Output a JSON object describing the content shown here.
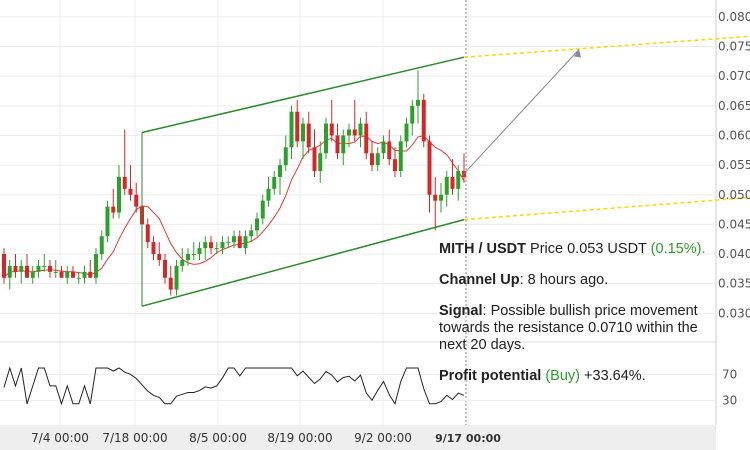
{
  "chart_data": {
    "type": "candlestick",
    "pair": "MITH / USDT",
    "y_ticks": [
      "0.080",
      "0.075",
      "0.070",
      "0.065",
      "0.060",
      "0.055",
      "0.050",
      "0.045",
      "0.040",
      "0.035",
      "0.030"
    ],
    "ylim": [
      0.0255,
      0.0815
    ],
    "x_ticks": [
      "7/4 00:00",
      "7/18 00:00",
      "8/5 00:00",
      "8/19 00:00",
      "9/2 00:00",
      "9/17 00:00"
    ],
    "oscillator_ticks": [
      "70",
      "30"
    ],
    "oscillator_ylim": [
      0,
      100
    ],
    "candles": [
      [
        0.04,
        0.041,
        0.035,
        0.036
      ],
      [
        0.036,
        0.039,
        0.034,
        0.038
      ],
      [
        0.038,
        0.04,
        0.036,
        0.037
      ],
      [
        0.037,
        0.039,
        0.035,
        0.038
      ],
      [
        0.038,
        0.04,
        0.036,
        0.036
      ],
      [
        0.036,
        0.038,
        0.035,
        0.037
      ],
      [
        0.037,
        0.039,
        0.036,
        0.038
      ],
      [
        0.038,
        0.04,
        0.037,
        0.038
      ],
      [
        0.038,
        0.039,
        0.036,
        0.037
      ],
      [
        0.037,
        0.039,
        0.036,
        0.037
      ],
      [
        0.037,
        0.038,
        0.036,
        0.036
      ],
      [
        0.036,
        0.038,
        0.035,
        0.037
      ],
      [
        0.037,
        0.038,
        0.036,
        0.036
      ],
      [
        0.036,
        0.037,
        0.035,
        0.036
      ],
      [
        0.036,
        0.038,
        0.035,
        0.037
      ],
      [
        0.037,
        0.039,
        0.036,
        0.036
      ],
      [
        0.036,
        0.041,
        0.035,
        0.04
      ],
      [
        0.04,
        0.044,
        0.039,
        0.043
      ],
      [
        0.043,
        0.049,
        0.042,
        0.048
      ],
      [
        0.048,
        0.051,
        0.046,
        0.047
      ],
      [
        0.047,
        0.055,
        0.046,
        0.053
      ],
      [
        0.053,
        0.061,
        0.05,
        0.051
      ],
      [
        0.051,
        0.055,
        0.049,
        0.05
      ],
      [
        0.05,
        0.052,
        0.047,
        0.048
      ],
      [
        0.048,
        0.05,
        0.044,
        0.045
      ],
      [
        0.045,
        0.046,
        0.041,
        0.042
      ],
      [
        0.042,
        0.043,
        0.039,
        0.04
      ],
      [
        0.04,
        0.042,
        0.038,
        0.039
      ],
      [
        0.039,
        0.04,
        0.035,
        0.036
      ],
      [
        0.036,
        0.038,
        0.033,
        0.034
      ],
      [
        0.034,
        0.039,
        0.033,
        0.038
      ],
      [
        0.038,
        0.041,
        0.037,
        0.039
      ],
      [
        0.039,
        0.041,
        0.038,
        0.04
      ],
      [
        0.04,
        0.042,
        0.039,
        0.04
      ],
      [
        0.04,
        0.042,
        0.039,
        0.041
      ],
      [
        0.041,
        0.043,
        0.039,
        0.042
      ],
      [
        0.042,
        0.043,
        0.04,
        0.041
      ],
      [
        0.041,
        0.042,
        0.04,
        0.041
      ],
      [
        0.041,
        0.043,
        0.04,
        0.042
      ],
      [
        0.042,
        0.043,
        0.041,
        0.042
      ],
      [
        0.042,
        0.044,
        0.041,
        0.043
      ],
      [
        0.043,
        0.044,
        0.041,
        0.041
      ],
      [
        0.041,
        0.044,
        0.04,
        0.043
      ],
      [
        0.043,
        0.045,
        0.042,
        0.044
      ],
      [
        0.044,
        0.047,
        0.043,
        0.046
      ],
      [
        0.046,
        0.05,
        0.045,
        0.049
      ],
      [
        0.049,
        0.053,
        0.048,
        0.051
      ],
      [
        0.051,
        0.054,
        0.05,
        0.053
      ],
      [
        0.053,
        0.056,
        0.05,
        0.055
      ],
      [
        0.055,
        0.06,
        0.054,
        0.058
      ],
      [
        0.058,
        0.065,
        0.056,
        0.064
      ],
      [
        0.064,
        0.066,
        0.058,
        0.059
      ],
      [
        0.059,
        0.063,
        0.056,
        0.062
      ],
      [
        0.062,
        0.064,
        0.057,
        0.058
      ],
      [
        0.058,
        0.061,
        0.053,
        0.054
      ],
      [
        0.054,
        0.059,
        0.052,
        0.057
      ],
      [
        0.057,
        0.063,
        0.056,
        0.062
      ],
      [
        0.062,
        0.066,
        0.059,
        0.06
      ],
      [
        0.06,
        0.062,
        0.056,
        0.057
      ],
      [
        0.057,
        0.061,
        0.055,
        0.06
      ],
      [
        0.06,
        0.062,
        0.058,
        0.061
      ],
      [
        0.061,
        0.066,
        0.059,
        0.06
      ],
      [
        0.06,
        0.063,
        0.058,
        0.062
      ],
      [
        0.062,
        0.064,
        0.056,
        0.057
      ],
      [
        0.057,
        0.059,
        0.054,
        0.055
      ],
      [
        0.055,
        0.058,
        0.054,
        0.057
      ],
      [
        0.057,
        0.06,
        0.056,
        0.059
      ],
      [
        0.059,
        0.061,
        0.055,
        0.056
      ],
      [
        0.056,
        0.058,
        0.053,
        0.054
      ],
      [
        0.054,
        0.06,
        0.053,
        0.059
      ],
      [
        0.059,
        0.063,
        0.058,
        0.062
      ],
      [
        0.062,
        0.066,
        0.06,
        0.065
      ],
      [
        0.065,
        0.071,
        0.062,
        0.066
      ],
      [
        0.066,
        0.067,
        0.058,
        0.059
      ],
      [
        0.059,
        0.06,
        0.047,
        0.05
      ],
      [
        0.05,
        0.053,
        0.044,
        0.049
      ],
      [
        0.049,
        0.052,
        0.047,
        0.05
      ],
      [
        0.05,
        0.054,
        0.048,
        0.053
      ],
      [
        0.053,
        0.056,
        0.05,
        0.051
      ],
      [
        0.051,
        0.055,
        0.049,
        0.054
      ],
      [
        0.054,
        0.057,
        0.052,
        0.053
      ]
    ],
    "ma_color": "#e53935",
    "up_color": "#2ca02c",
    "down_color": "#d62728",
    "channel_color": "#2b8a2b",
    "projection_color": "#ffd600"
  },
  "info": {
    "pair": "MITH / USDT",
    "price_prefix": "Price",
    "price": "0.053 USDT",
    "change": "(0.15%).",
    "pattern_label": "Channel Up",
    "pattern_time": ": 8 hours ago.",
    "signal_label": "Signal",
    "signal_text": ": Possible bullish price movement towards the resistance 0.0710 within the next 20 days.",
    "profit_label": "Profit potential",
    "profit_side": "(Buy)",
    "profit_value": "+33.64%."
  }
}
